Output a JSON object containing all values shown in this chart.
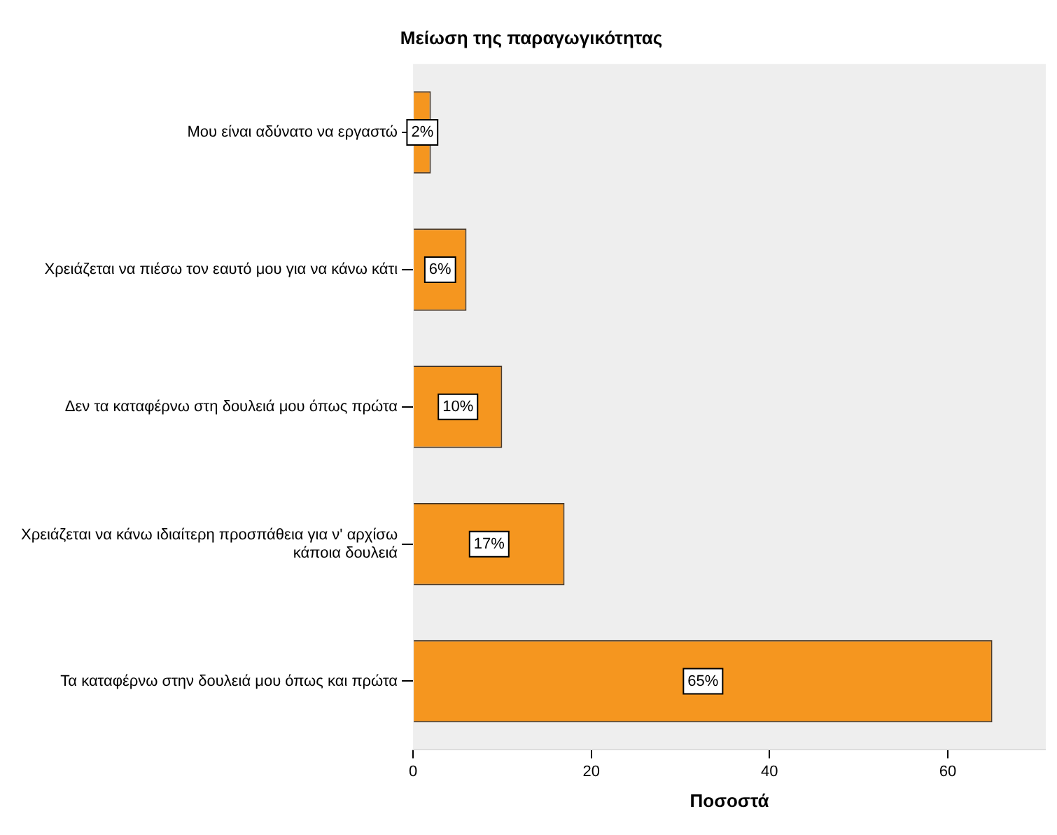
{
  "chart_data": {
    "type": "bar",
    "orientation": "horizontal",
    "title": "Μείωση της παραγωγικότητας",
    "xlabel": "Ποσοστά",
    "categories": [
      "Μου είναι αδύνατο να εργαστώ",
      "Χρειάζεται να πιέσω τον εαυτό μου για να κάνω κάτι",
      "Δεν τα καταφέρνω στη δουλειά μου όπως πρώτα",
      "Χρειάζεται να κάνω ιδιαίτερη προσπάθεια για ν' αρχίσω κάποια δουλειά",
      "Τα καταφέρνω στην δουλειά μου όπως και πρώτα"
    ],
    "values": [
      2,
      6,
      10,
      17,
      65
    ],
    "value_labels": [
      "2%",
      "6%",
      "10%",
      "17%",
      "65%"
    ],
    "color": "#f5961f",
    "xlim": [
      0,
      71
    ],
    "xticks": [
      0,
      20,
      40,
      60
    ],
    "grid": false,
    "legend": false
  }
}
